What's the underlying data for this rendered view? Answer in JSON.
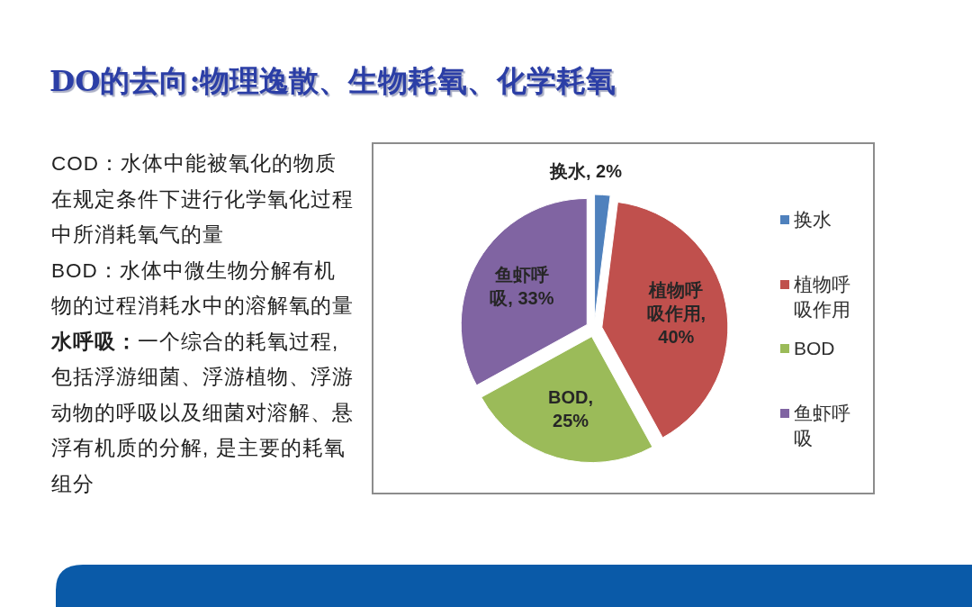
{
  "chart_data": {
    "type": "pie",
    "title": "DO的去向:物理逸散、生物耗氧、化学耗氧",
    "categories": [
      "换水",
      "植物呼吸作用",
      "BOD",
      "鱼虾呼吸"
    ],
    "values": [
      2,
      40,
      25,
      33
    ],
    "colors": [
      "#4f81bd",
      "#c0504d",
      "#9bbb59",
      "#8064a2"
    ],
    "value_labels": [
      "换水, 2%",
      "植物呼吸作用, 40%",
      "BOD, 25%",
      "鱼虾呼吸, 33%"
    ],
    "legend": "right",
    "annotations": [
      "COD：水体中能被氧化的物质在规定条件下进行化学氧化过程中所消耗氧气的量",
      "BOD：水体中微生物分解有机物的过程消耗水中的溶解氧的量",
      "**水呼吸：**一个综合的耗氧过程, 包括浮游细菌、浮游植物、浮游动物的呼吸以及细菌对溶解、悬浮有机质的分解, 是主要的耗氧组分"
    ]
  }
}
